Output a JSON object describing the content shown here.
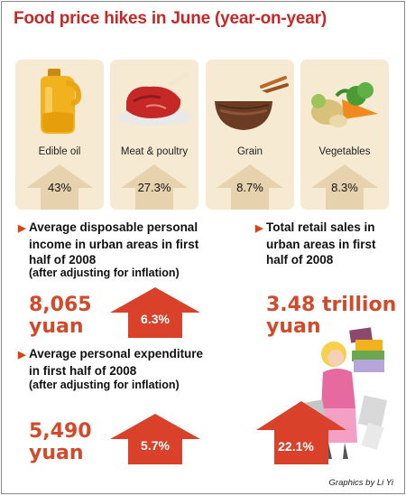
{
  "title": "Food price hikes in June (year-on-year)",
  "items": [
    {
      "name": "Edible oil",
      "value": "43%",
      "icon": "oil-jug-icon"
    },
    {
      "name": "Meat & poultry",
      "value": "27.3%",
      "icon": "meat-icon"
    },
    {
      "name": "Grain",
      "value": "8.7%",
      "icon": "grain-bowl-icon"
    },
    {
      "name": "Vegetables",
      "value": "8.3%",
      "icon": "vegetables-icon"
    }
  ],
  "income": {
    "heading_line1": "Average disposable personal",
    "heading_line2": "income in urban areas in first",
    "heading_line3": "half of 2008",
    "note": "(after adjusting for inflation)",
    "value_line1": "8,065",
    "value_line2": "yuan",
    "change": "6.3%"
  },
  "retail": {
    "heading_line1": "Total retail sales in",
    "heading_line2": "urban areas in first",
    "heading_line3": "half of 2008",
    "value_line1": "3.48 trillion",
    "value_line2": "yuan",
    "change": "22.1%"
  },
  "expenditure": {
    "heading_line1": "Average personal expenditure",
    "heading_line2": "in first half of 2008",
    "note": "(after adjusting for inflation)",
    "value_line1": "5,490",
    "value_line2": "yuan",
    "change": "5.7%"
  },
  "credit": "Graphics by Li Yi",
  "colors": {
    "accent": "#c62828",
    "arrow": "#d9412b",
    "card": "#f7ead2",
    "light_arrow": "#e7d2ae"
  }
}
